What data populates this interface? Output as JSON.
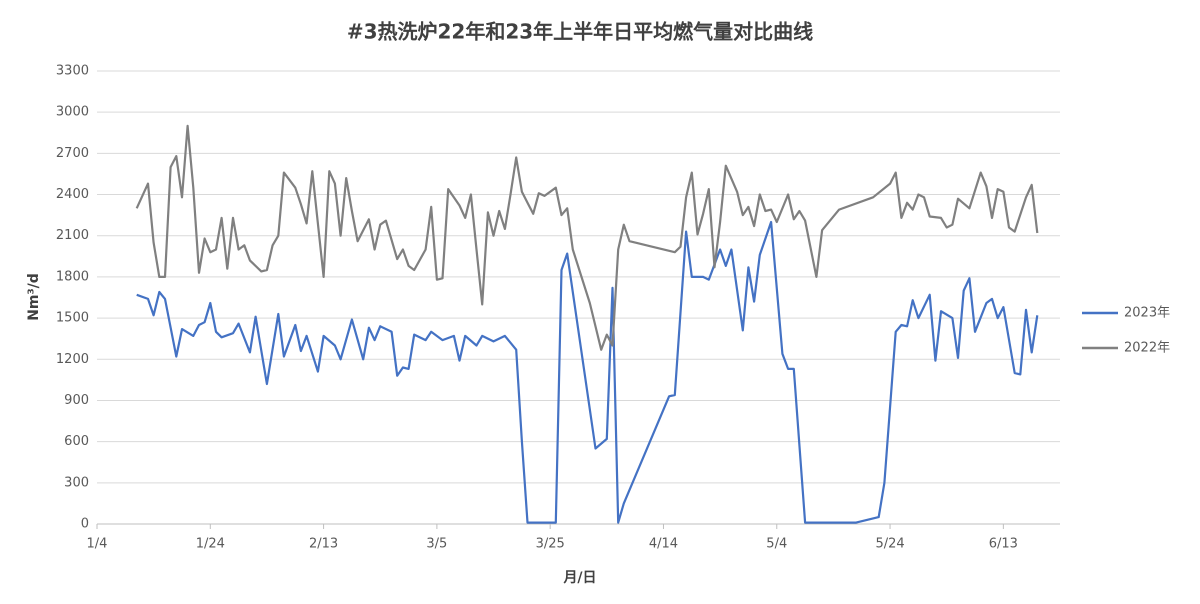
{
  "chart_data": {
    "type": "line",
    "title": "#3热洗炉22年和23年上半年日平均燃气量对比曲线",
    "x_label": "月/日",
    "y_label": "Nm³/d",
    "xlim": [
      "1/4",
      "6/23"
    ],
    "xticks": [
      "1/4",
      "1/24",
      "2/13",
      "3/5",
      "3/25",
      "4/14",
      "5/4",
      "5/24",
      "6/13"
    ],
    "ylim": [
      0,
      3300
    ],
    "yticks": [
      0,
      300,
      600,
      900,
      1200,
      1500,
      1800,
      2100,
      2400,
      2700,
      3000,
      3300
    ],
    "grid": true,
    "legend": "right",
    "series": [
      {
        "name": "2023年",
        "color": "#4472c4",
        "x": [
          "1/11",
          "1/13",
          "1/14",
          "1/15",
          "1/16",
          "1/18",
          "1/19",
          "1/21",
          "1/22",
          "1/23",
          "1/24",
          "1/25",
          "1/26",
          "1/28",
          "1/29",
          "1/31",
          "2/1",
          "2/3",
          "2/5",
          "2/6",
          "2/8",
          "2/9",
          "2/10",
          "2/12",
          "2/13",
          "2/15",
          "2/16",
          "2/18",
          "2/20",
          "2/21",
          "2/22",
          "2/23",
          "2/25",
          "2/26",
          "2/27",
          "2/28",
          "3/1",
          "3/3",
          "3/4",
          "3/6",
          "3/8",
          "3/9",
          "3/10",
          "3/12",
          "3/13",
          "3/15",
          "3/17",
          "3/19",
          "3/20",
          "3/21",
          "3/26",
          "3/27",
          "3/28",
          "4/2",
          "4/4",
          "4/5",
          "4/6",
          "4/7",
          "4/15",
          "4/16",
          "4/18",
          "4/19",
          "4/21",
          "4/22",
          "4/24",
          "4/25",
          "4/26",
          "4/28",
          "4/29",
          "4/30",
          "5/1",
          "5/3",
          "5/5",
          "5/6",
          "5/7",
          "5/9",
          "5/18",
          "5/22",
          "5/23",
          "5/25",
          "5/26",
          "5/27",
          "5/28",
          "5/29",
          "5/31",
          "6/1",
          "6/2",
          "6/4",
          "6/5",
          "6/6",
          "6/7",
          "6/8",
          "6/10",
          "6/11",
          "6/12",
          "6/13",
          "6/15",
          "6/16",
          "6/17",
          "6/18",
          "6/19"
        ],
        "values": [
          1670,
          1640,
          1520,
          1690,
          1640,
          1220,
          1420,
          1370,
          1450,
          1470,
          1610,
          1400,
          1360,
          1390,
          1460,
          1250,
          1510,
          1020,
          1530,
          1220,
          1450,
          1260,
          1370,
          1110,
          1370,
          1300,
          1200,
          1490,
          1200,
          1430,
          1340,
          1440,
          1400,
          1080,
          1140,
          1130,
          1380,
          1340,
          1400,
          1340,
          1370,
          1190,
          1370,
          1300,
          1370,
          1330,
          1370,
          1270,
          600,
          10,
          10,
          1850,
          1970,
          550,
          620,
          1720,
          10,
          150,
          930,
          940,
          2130,
          1800,
          1800,
          1780,
          2000,
          1880,
          2000,
          1410,
          1870,
          1620,
          1960,
          2200,
          1240,
          1130,
          1130,
          10,
          10,
          50,
          300,
          1400,
          1450,
          1440,
          1630,
          1500,
          1670,
          1190,
          1550,
          1500,
          1210,
          1700,
          1790,
          1400,
          1610,
          1640,
          1500,
          1580,
          1100,
          1090,
          1560,
          1250,
          1520
        ]
      },
      {
        "name": "2022年",
        "color": "#808080",
        "x": [
          "1/11",
          "1/13",
          "1/14",
          "1/15",
          "1/16",
          "1/17",
          "1/18",
          "1/19",
          "1/20",
          "1/21",
          "1/22",
          "1/23",
          "1/24",
          "1/25",
          "1/26",
          "1/27",
          "1/28",
          "1/29",
          "1/30",
          "1/31",
          "2/2",
          "2/3",
          "2/4",
          "2/5",
          "2/6",
          "2/8",
          "2/9",
          "2/10",
          "2/11",
          "2/13",
          "2/14",
          "2/15",
          "2/16",
          "2/17",
          "2/18",
          "2/19",
          "2/21",
          "2/22",
          "2/23",
          "2/24",
          "2/26",
          "2/27",
          "2/28",
          "3/1",
          "3/3",
          "3/4",
          "3/5",
          "3/6",
          "3/7",
          "3/9",
          "3/10",
          "3/11",
          "3/12",
          "3/13",
          "3/14",
          "3/15",
          "3/16",
          "3/17",
          "3/18",
          "3/19",
          "3/20",
          "3/21",
          "3/22",
          "3/23",
          "3/24",
          "3/26",
          "3/27",
          "3/28",
          "3/29",
          "4/1",
          "4/3",
          "4/4",
          "4/5",
          "4/6",
          "4/7",
          "4/8",
          "4/12",
          "4/16",
          "4/17",
          "4/18",
          "4/19",
          "4/20",
          "4/21",
          "4/22",
          "4/23",
          "4/24",
          "4/25",
          "4/27",
          "4/28",
          "4/29",
          "4/30",
          "5/1",
          "5/2",
          "5/3",
          "5/4",
          "5/6",
          "5/7",
          "5/8",
          "5/9",
          "5/11",
          "5/12",
          "5/15",
          "5/21",
          "5/24",
          "5/25",
          "5/26",
          "5/27",
          "5/28",
          "5/29",
          "5/30",
          "5/31",
          "6/2",
          "6/3",
          "6/4",
          "6/5",
          "6/7",
          "6/9",
          "6/10",
          "6/11",
          "6/12",
          "6/13",
          "6/14",
          "6/15",
          "6/17",
          "6/18",
          "6/19"
        ],
        "values": [
          2300,
          2480,
          2050,
          1800,
          1800,
          2600,
          2680,
          2380,
          2900,
          2450,
          1830,
          2080,
          1980,
          2000,
          2230,
          1860,
          2230,
          2000,
          2030,
          1920,
          1840,
          1850,
          2030,
          2100,
          2560,
          2450,
          2330,
          2190,
          2570,
          1800,
          2570,
          2480,
          2100,
          2520,
          2280,
          2060,
          2220,
          2000,
          2180,
          2210,
          1930,
          2000,
          1880,
          1850,
          2000,
          2310,
          1780,
          1790,
          2440,
          2320,
          2230,
          2400,
          2000,
          1600,
          2270,
          2100,
          2280,
          2150,
          2400,
          2670,
          2420,
          2340,
          2260,
          2410,
          2390,
          2450,
          2250,
          2300,
          2000,
          1610,
          1270,
          1380,
          1300,
          2000,
          2180,
          2060,
          2020,
          1980,
          2020,
          2380,
          2560,
          2110,
          2260,
          2440,
          1870,
          2200,
          2610,
          2420,
          2250,
          2310,
          2170,
          2400,
          2280,
          2290,
          2200,
          2400,
          2220,
          2280,
          2210,
          1800,
          2140,
          2290,
          2380,
          2480,
          2560,
          2230,
          2340,
          2290,
          2400,
          2380,
          2240,
          2230,
          2160,
          2180,
          2370,
          2300,
          2560,
          2460,
          2230,
          2440,
          2420,
          2160,
          2130,
          2380,
          2470,
          2120
        ]
      }
    ]
  }
}
